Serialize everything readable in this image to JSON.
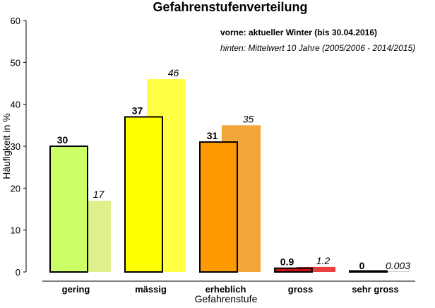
{
  "chart_data": {
    "type": "bar",
    "title": "Gefahrenstufenverteilung",
    "xlabel": "Gefahrenstufe",
    "ylabel": "Häufigkeit in %",
    "ylim": [
      0,
      60
    ],
    "yticks": [
      0,
      10,
      20,
      30,
      40,
      50,
      60
    ],
    "grid": false,
    "categories": [
      "gering",
      "mässig",
      "erheblich",
      "gross",
      "sehr gross"
    ],
    "annotations": {
      "front_note": "vorne: aktueller Winter (bis 30.04.2016)",
      "back_note": "hinten: Mittelwert 10 Jahre (2005/2006 - 2014/2015)"
    },
    "series": [
      {
        "role": "front",
        "values": [
          30,
          37,
          31,
          0.9,
          0
        ],
        "labels": [
          "30",
          "37",
          "31",
          "0.9",
          "0"
        ]
      },
      {
        "role": "back",
        "values": [
          17,
          46,
          35,
          1.2,
          0.003
        ],
        "labels": [
          "17",
          "46",
          "35",
          "1.2",
          "0.003"
        ]
      }
    ],
    "colors": {
      "front": [
        "#ccff66",
        "#ffff00",
        "#ff9900",
        "#cc1111",
        "#000000"
      ],
      "back": [
        "#dff08a",
        "#ffff44",
        "#f2a63a",
        "#e84040",
        "#cccccc"
      ]
    }
  }
}
